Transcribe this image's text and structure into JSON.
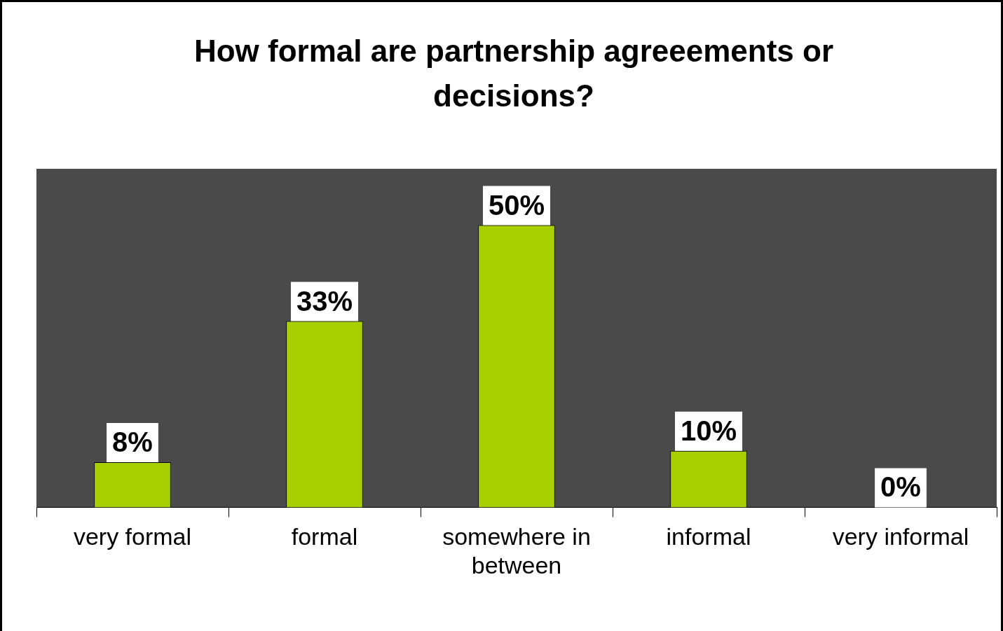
{
  "chart_data": {
    "type": "bar",
    "title": "How formal are partnership agreeements or decisions?",
    "categories": [
      "very formal",
      "formal",
      "somewhere in between",
      "informal",
      "very informal"
    ],
    "values": [
      8,
      33,
      50,
      10,
      0
    ],
    "color": "#a8d000",
    "value_labels": [
      "8%",
      "33%",
      "50%",
      "10%",
      "0%"
    ],
    "tick_labels": "x",
    "grid": false,
    "legend": false
  }
}
